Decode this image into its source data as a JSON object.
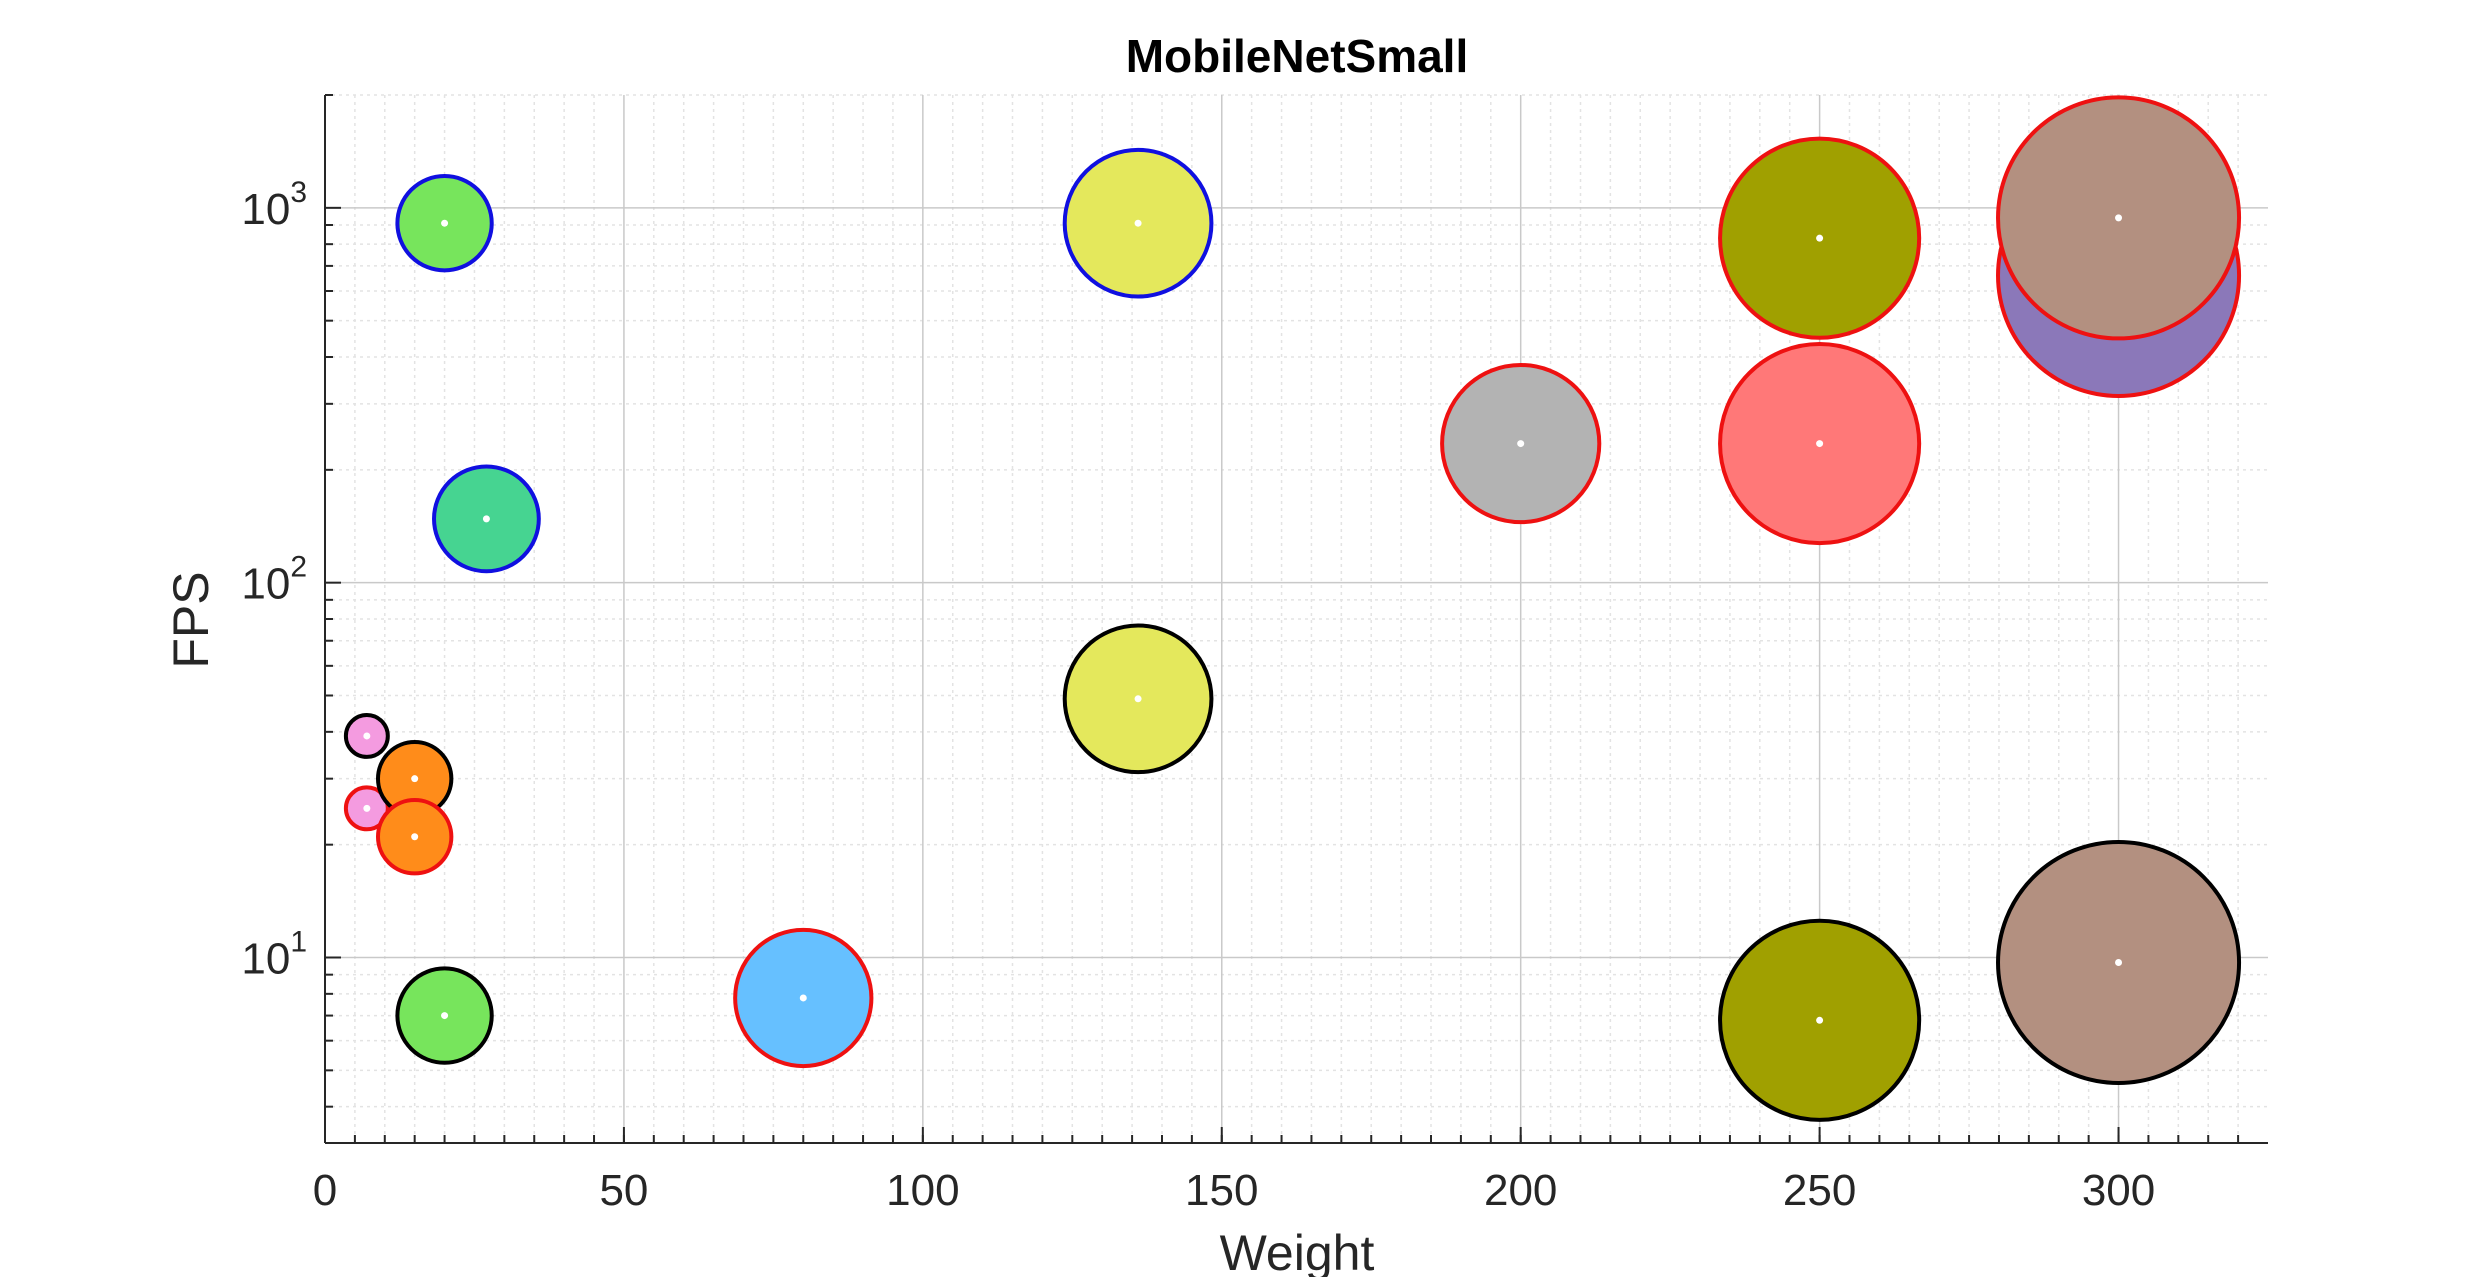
{
  "chart_data": {
    "type": "scatter",
    "title": "MobileNetSmall",
    "xlabel": "Weight",
    "ylabel": "FPS",
    "xlim": [
      0,
      325
    ],
    "ylim": [
      3.2,
      2000
    ],
    "yscale": "log",
    "xticks": [
      0,
      50,
      100,
      150,
      200,
      250,
      300
    ],
    "xtick_labels": [
      "0",
      "50",
      "100",
      "150",
      "200",
      "250",
      "300"
    ],
    "yticks": [
      10,
      100,
      1000
    ],
    "ytick_labels": [
      {
        "base": "10",
        "exp": "1"
      },
      {
        "base": "10",
        "exp": "2"
      },
      {
        "base": "10",
        "exp": "3"
      }
    ],
    "grid": true,
    "minor_grid": true,
    "legend": "none",
    "points": [
      {
        "x": 20,
        "y": 910,
        "size": 0.09,
        "fill": "#77e55c",
        "edge": "#1010e0"
      },
      {
        "x": 27,
        "y": 148,
        "size": 0.1,
        "fill": "#46d491",
        "edge": "#1010e0"
      },
      {
        "x": 136,
        "y": 910,
        "size": 0.14,
        "fill": "#e4e85c",
        "edge": "#1010e0"
      },
      {
        "x": 200,
        "y": 235,
        "size": 0.15,
        "fill": "#b3b3b3",
        "edge": "#ee1111"
      },
      {
        "x": 250,
        "y": 830,
        "size": 0.19,
        "fill": "#a0a000",
        "edge": "#ee1111"
      },
      {
        "x": 250,
        "y": 235,
        "size": 0.19,
        "fill": "#ff7878",
        "edge": "#ee1111"
      },
      {
        "x": 300,
        "y": 660,
        "size": 0.23,
        "fill": "#8b78b9",
        "edge": "#ee1111"
      },
      {
        "x": 300,
        "y": 940,
        "size": 0.23,
        "fill": "#b39080",
        "edge": "#ee1111"
      },
      {
        "x": 136,
        "y": 49,
        "size": 0.14,
        "fill": "#e4e85c",
        "edge": "#000000"
      },
      {
        "x": 7,
        "y": 39,
        "size": 0.04,
        "fill": "#f49be0",
        "edge": "#000000"
      },
      {
        "x": 7,
        "y": 25,
        "size": 0.04,
        "fill": "#f49be0",
        "edge": "#ee1111"
      },
      {
        "x": 15,
        "y": 30,
        "size": 0.07,
        "fill": "#ff8c1a",
        "edge": "#000000"
      },
      {
        "x": 15,
        "y": 21,
        "size": 0.07,
        "fill": "#ff8c1a",
        "edge": "#ee1111"
      },
      {
        "x": 20,
        "y": 7,
        "size": 0.09,
        "fill": "#77e55c",
        "edge": "#000000"
      },
      {
        "x": 80,
        "y": 7.8,
        "size": 0.13,
        "fill": "#66c0ff",
        "edge": "#ee1111"
      },
      {
        "x": 250,
        "y": 6.8,
        "size": 0.19,
        "fill": "#a0a000",
        "edge": "#000000"
      },
      {
        "x": 300,
        "y": 9.7,
        "size": 0.23,
        "fill": "#b39080",
        "edge": "#000000"
      }
    ]
  },
  "colors": {
    "grid_major": "#c9c9c9",
    "grid_minor": "#e3e3e3",
    "axis": "#262626",
    "marker_center": "#ffffff"
  }
}
